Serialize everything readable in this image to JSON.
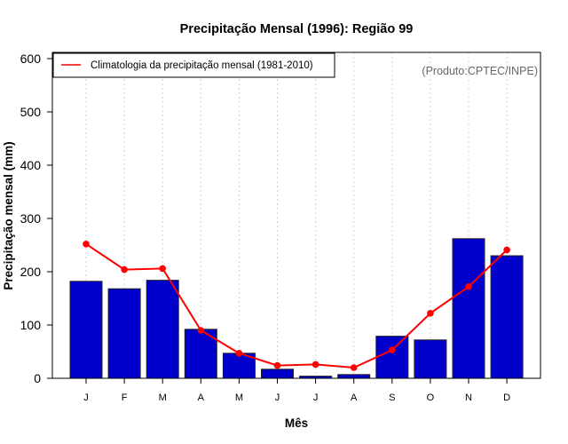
{
  "chart_data": {
    "type": "bar",
    "title": "Precipitação Mensal (1996): Região 99",
    "xlabel": "Mês",
    "ylabel": "Precipitação mensal (mm)",
    "ylim": [
      0,
      600
    ],
    "yticks": [
      "0",
      "100",
      "200",
      "300",
      "400",
      "500",
      "600"
    ],
    "categories": [
      "J",
      "F",
      "M",
      "A",
      "M",
      "J",
      "J",
      "A",
      "S",
      "O",
      "N",
      "D"
    ],
    "grid": "vertical dotted",
    "series": [
      {
        "name": "Precipitação mensal (1996)",
        "type": "bar",
        "color": "#0000CD",
        "values": [
          182,
          168,
          184,
          92,
          47,
          17,
          4,
          7,
          79,
          72,
          262,
          230
        ]
      },
      {
        "name": "Climatologia da precipitação mensal (1981-2010)",
        "type": "line",
        "color": "#FF0000",
        "values": [
          252,
          204,
          206,
          90,
          47,
          24,
          26,
          20,
          53,
          122,
          172,
          241
        ]
      }
    ],
    "legend": {
      "placement": "top-left",
      "entries": [
        "Climatologia da precipitação mensal (1981-2010)"
      ]
    },
    "annotation": "(Produto:CPTEC/INPE)"
  }
}
